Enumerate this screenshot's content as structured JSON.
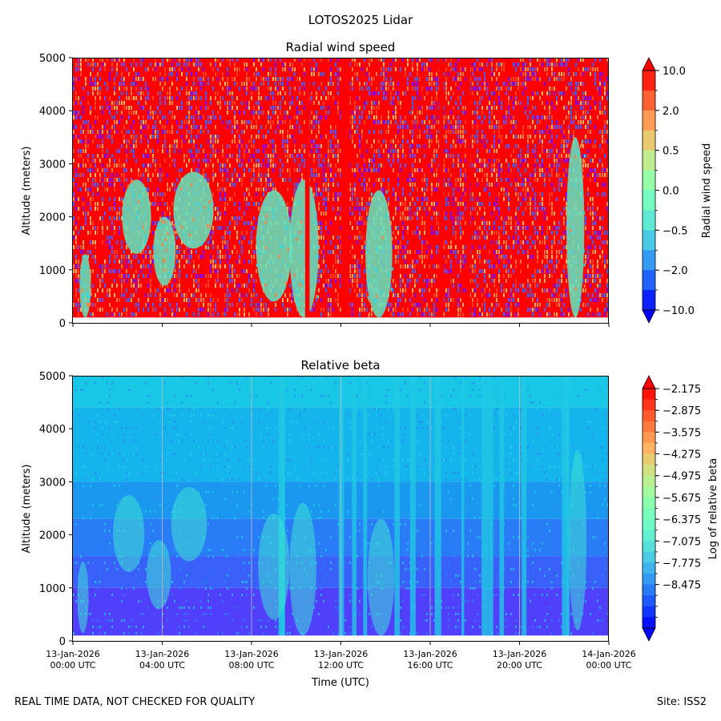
{
  "chart_data": {
    "suptitle": "LOTOS2025 Lidar",
    "x_ticks": [
      {
        "date": "13-Jan-2026",
        "time": "00:00 UTC"
      },
      {
        "date": "13-Jan-2026",
        "time": "04:00 UTC"
      },
      {
        "date": "13-Jan-2026",
        "time": "08:00 UTC"
      },
      {
        "date": "13-Jan-2026",
        "time": "12:00 UTC"
      },
      {
        "date": "13-Jan-2026",
        "time": "16:00 UTC"
      },
      {
        "date": "13-Jan-2026",
        "time": "20:00 UTC"
      },
      {
        "date": "14-Jan-2026",
        "time": "00:00 UTC"
      }
    ],
    "xlabel": "Time (UTC)",
    "xlim": [
      "13-Jan-2026 00:00 UTC",
      "14-Jan-2026 00:00 UTC"
    ],
    "panels": [
      {
        "type": "heatmap",
        "title": "Radial wind speed",
        "ylabel": "Altitude (meters)",
        "ylim": [
          0,
          5000
        ],
        "y_ticks": [
          0,
          1000,
          2000,
          3000,
          4000,
          5000
        ],
        "colorbar": {
          "label": "Radial wind speed",
          "tick_labels": [
            "10.0",
            "2.0",
            "0.5",
            "0.0",
            "−0.5",
            "−2.0",
            "−10.0"
          ],
          "levels": 12,
          "colormap": "rainbow"
        },
        "features": [
          {
            "t0": 0.3,
            "t1": 0.8,
            "z0": 100,
            "z1": 1300
          },
          {
            "t0": 2.2,
            "t1": 3.5,
            "z0": 1300,
            "z1": 2700
          },
          {
            "t0": 3.6,
            "t1": 4.6,
            "z0": 700,
            "z1": 2000
          },
          {
            "t0": 4.5,
            "t1": 6.3,
            "z0": 1400,
            "z1": 2850
          },
          {
            "t0": 8.2,
            "t1": 9.8,
            "z0": 400,
            "z1": 2500
          },
          {
            "t0": 9.7,
            "t1": 11.0,
            "z0": 100,
            "z1": 2700
          },
          {
            "t0": 13.1,
            "t1": 14.3,
            "z0": 100,
            "z1": 2500
          },
          {
            "t0": 22.1,
            "t1": 22.9,
            "z0": 100,
            "z1": 3500
          }
        ]
      },
      {
        "type": "heatmap",
        "title": "Relative beta",
        "ylabel": "Altitude (meters)",
        "ylim": [
          0,
          5000
        ],
        "y_ticks": [
          0,
          1000,
          2000,
          3000,
          4000,
          5000
        ],
        "colorbar": {
          "label": "Log of relative beta",
          "tick_labels": [
            "−2.175",
            "−2.875",
            "−3.575",
            "−4.275",
            "−4.975",
            "−5.675",
            "−6.375",
            "−7.075",
            "−7.775",
            "−8.475"
          ],
          "levels": 22,
          "colormap": "rainbow"
        },
        "features": [
          {
            "t0": 0.2,
            "t1": 0.7,
            "z0": 150,
            "z1": 1500
          },
          {
            "t0": 1.8,
            "t1": 3.2,
            "z0": 1300,
            "z1": 2750
          },
          {
            "t0": 3.3,
            "t1": 4.4,
            "z0": 600,
            "z1": 1900
          },
          {
            "t0": 4.4,
            "t1": 6.0,
            "z0": 1500,
            "z1": 2900
          },
          {
            "t0": 8.3,
            "t1": 9.7,
            "z0": 400,
            "z1": 2400
          },
          {
            "t0": 9.7,
            "t1": 10.9,
            "z0": 100,
            "z1": 2600
          },
          {
            "t0": 13.2,
            "t1": 14.4,
            "z0": 100,
            "z1": 2300
          },
          {
            "t0": 22.2,
            "t1": 23.0,
            "z0": 200,
            "z1": 3600
          }
        ],
        "columns": [
          9.2,
          9.3,
          11.9,
          12.5,
          13.0,
          14.4,
          15.1,
          16.2,
          17.4,
          18.3,
          18.6,
          19.1,
          20.1,
          21.9,
          22.1
        ]
      }
    ]
  },
  "footer": {
    "left": "REAL TIME DATA, NOT CHECKED FOR QUALITY",
    "right": "Site: ISS2"
  }
}
